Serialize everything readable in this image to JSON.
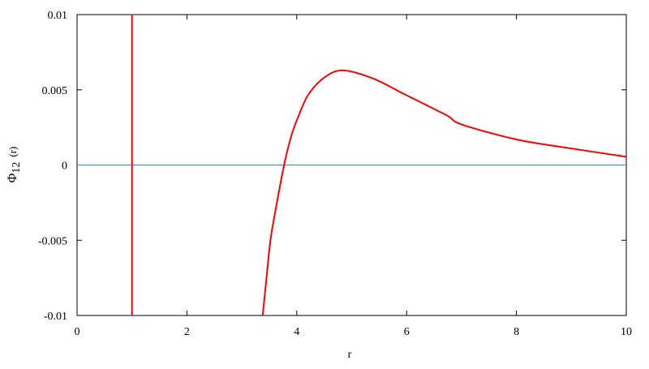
{
  "chart_data": {
    "type": "line",
    "title": "",
    "xlabel": "r",
    "ylabel_main": "Φ",
    "ylabel_sub": "12",
    "ylabel_arg": "(r)",
    "xlim": [
      0,
      10
    ],
    "ylim": [
      -0.01,
      0.01
    ],
    "xticks": [
      0,
      2,
      4,
      6,
      8,
      10
    ],
    "xtick_labels": [
      "0",
      "2",
      "4",
      "6",
      "8",
      "10"
    ],
    "yticks": [
      -0.01,
      -0.005,
      0,
      0.005,
      0.01
    ],
    "ytick_labels": [
      "-0.01",
      "-0.005",
      "0",
      "0.005",
      "0.01"
    ],
    "grid": false,
    "zero_line": {
      "y": 0,
      "color": "#3a7fd0"
    },
    "vertical_line": {
      "x": 1,
      "color": "#ff0000"
    },
    "series": [
      {
        "color": "#ff0000",
        "x": [
          3.38,
          3.45,
          3.52,
          3.62,
          3.77,
          3.89,
          4.01,
          4.21,
          4.51,
          4.85,
          5.39,
          5.98,
          6.72,
          7.0,
          8.0,
          9.0,
          10.0
        ],
        "y": [
          -0.01,
          -0.0075,
          -0.00503,
          -0.00288,
          0.0,
          0.0018,
          0.00305,
          0.00467,
          0.00584,
          0.00629,
          0.00575,
          0.00467,
          0.00332,
          0.0027,
          0.0017,
          0.0011,
          0.00055
        ]
      }
    ]
  }
}
